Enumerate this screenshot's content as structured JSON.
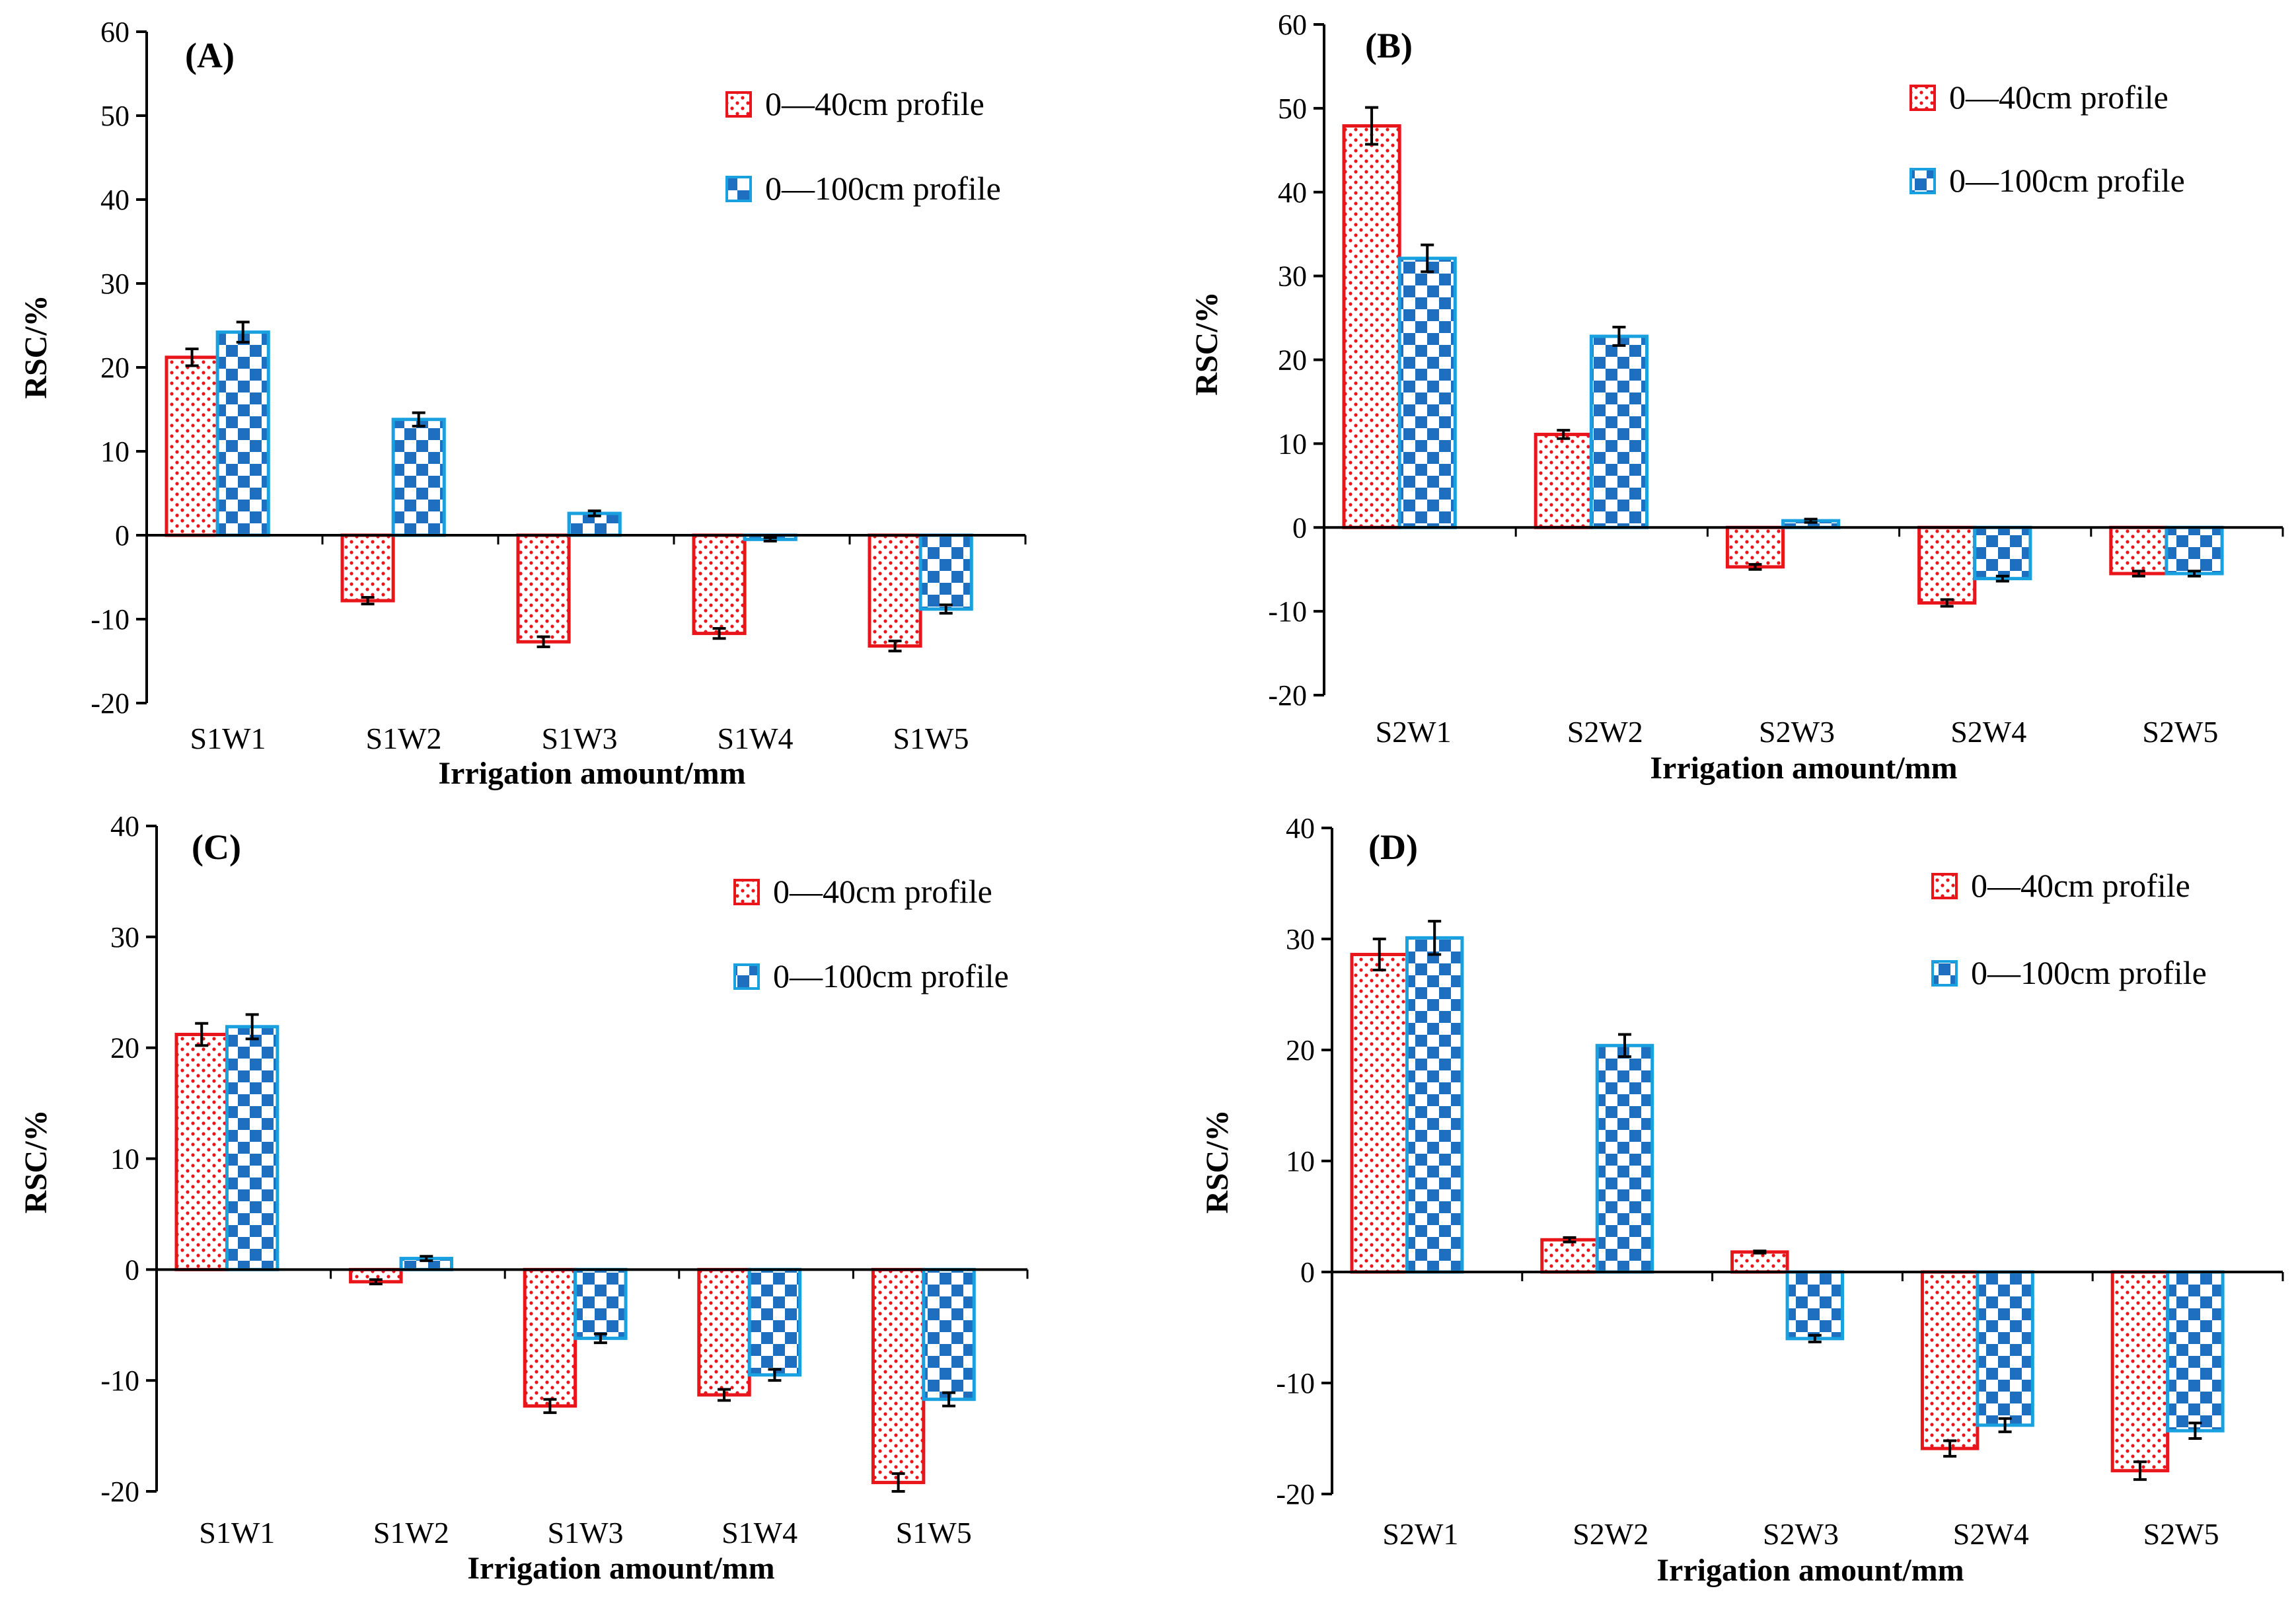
{
  "figure": {
    "colors": {
      "series1_stroke": "#e8151b",
      "series1_dots": "#e8151b",
      "series2_stroke": "#19a0de",
      "series2_check": "#1f6fc0",
      "axis": "#000000"
    }
  },
  "chart_data": [
    {
      "type": "bar",
      "panel_label": "(A)",
      "ylabel": "RSC/%",
      "xlabel": "Irrigation amount/mm",
      "ylim": [
        -20,
        60
      ],
      "yticks": [
        -20,
        -10,
        0,
        10,
        20,
        30,
        40,
        50,
        60
      ],
      "categories": [
        "S1W1",
        "S1W2",
        "S1W3",
        "S1W4",
        "S1W5"
      ],
      "legend_position": "top-right",
      "series": [
        {
          "name": "0—40cm profile",
          "pattern": "dots",
          "values": [
            21.2,
            -7.8,
            -12.7,
            -11.7,
            -13.2
          ],
          "errors": [
            1.0,
            0.4,
            0.6,
            0.6,
            0.6
          ]
        },
        {
          "name": "0—100cm profile",
          "pattern": "check",
          "values": [
            24.2,
            13.8,
            2.6,
            -0.5,
            -8.8
          ],
          "errors": [
            1.2,
            0.8,
            0.3,
            0.2,
            0.5
          ]
        }
      ]
    },
    {
      "type": "bar",
      "panel_label": "(B)",
      "ylabel": "RSC/%",
      "xlabel": "Irrigation amount/mm",
      "ylim": [
        -20,
        60
      ],
      "yticks": [
        -20,
        -10,
        0,
        10,
        20,
        30,
        40,
        50,
        60
      ],
      "categories": [
        "S2W1",
        "S2W2",
        "S2W3",
        "S2W4",
        "S2W5"
      ],
      "legend_position": "top-right",
      "series": [
        {
          "name": "0—40cm profile",
          "pattern": "dots",
          "values": [
            47.9,
            11.1,
            -4.7,
            -9.0,
            -5.5
          ],
          "errors": [
            2.2,
            0.5,
            0.3,
            0.4,
            0.3
          ]
        },
        {
          "name": "0—100cm profile",
          "pattern": "check",
          "values": [
            32.1,
            22.8,
            0.8,
            -6.1,
            -5.5
          ],
          "errors": [
            1.6,
            1.1,
            0.2,
            0.3,
            0.3
          ]
        }
      ]
    },
    {
      "type": "bar",
      "panel_label": "(C)",
      "ylabel": "RSC/%",
      "xlabel": "Irrigation amount/mm",
      "ylim": [
        -20,
        40
      ],
      "yticks": [
        -20,
        -10,
        0,
        10,
        20,
        30,
        40
      ],
      "categories": [
        "S1W1",
        "S1W2",
        "S1W3",
        "S1W4",
        "S1W5"
      ],
      "legend_position": "top-right",
      "series": [
        {
          "name": "0—40cm profile",
          "pattern": "dots",
          "values": [
            21.2,
            -1.1,
            -12.3,
            -11.3,
            -19.2
          ],
          "errors": [
            1.0,
            0.2,
            0.6,
            0.5,
            0.8
          ]
        },
        {
          "name": "0—100cm profile",
          "pattern": "check",
          "values": [
            21.9,
            1.0,
            -6.2,
            -9.5,
            -11.7
          ],
          "errors": [
            1.1,
            0.2,
            0.4,
            0.5,
            0.6
          ]
        }
      ]
    },
    {
      "type": "bar",
      "panel_label": "(D)",
      "ylabel": "RSC/%",
      "xlabel": "Irrigation amount/mm",
      "ylim": [
        -20,
        40
      ],
      "yticks": [
        -20,
        -10,
        0,
        10,
        20,
        30,
        40
      ],
      "categories": [
        "S2W1",
        "S2W2",
        "S2W3",
        "S2W4",
        "S2W5"
      ],
      "legend_position": "top-right",
      "series": [
        {
          "name": "0—40cm profile",
          "pattern": "dots",
          "values": [
            28.6,
            2.9,
            1.8,
            -15.9,
            -17.9
          ],
          "errors": [
            1.4,
            0.2,
            0.1,
            0.7,
            0.8
          ]
        },
        {
          "name": "0—100cm profile",
          "pattern": "check",
          "values": [
            30.1,
            20.4,
            -6.0,
            -13.8,
            -14.3
          ],
          "errors": [
            1.5,
            1.0,
            0.3,
            0.6,
            0.7
          ]
        }
      ]
    }
  ]
}
